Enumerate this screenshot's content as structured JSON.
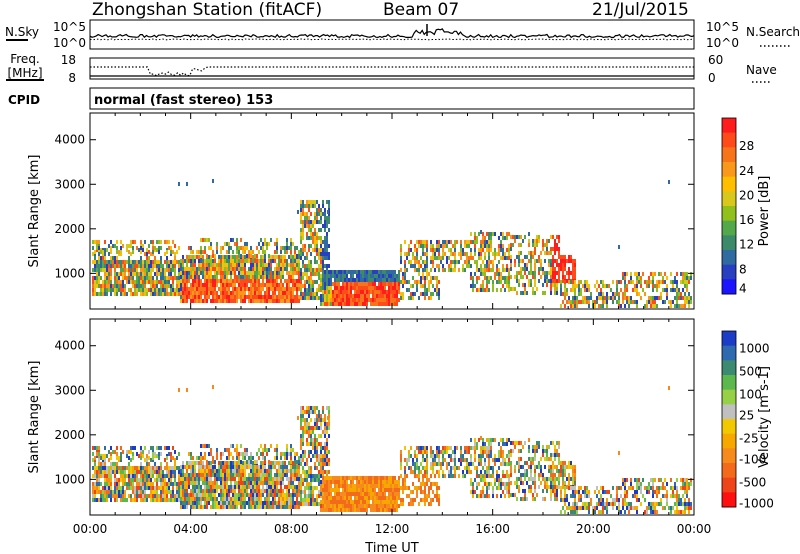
{
  "header": {
    "station": "Zhongshan Station (fitACF)",
    "beam": "Beam 07",
    "date": "21/Jul/2015"
  },
  "chart_data": [
    {
      "type": "line",
      "panel": "noise",
      "left_label": "N.Sky",
      "right_label": "N.Search",
      "left_ticks": [
        "10^5",
        "10^0"
      ],
      "right_ticks": [
        "10^5",
        "10^0"
      ]
    },
    {
      "type": "line",
      "panel": "frequency",
      "left_label_lines": [
        "Freq.",
        "[MHz]"
      ],
      "right_label": "Nave",
      "left_ticks": [
        "18",
        "8"
      ],
      "right_ticks": [
        "60",
        "0"
      ]
    },
    {
      "type": "table",
      "panel": "cpid",
      "label": "CPID",
      "text": "normal (fast stereo) 153"
    },
    {
      "type": "heatmap",
      "panel": "power",
      "ylabel": "Slant Range [km]",
      "yticks": [
        1000,
        2000,
        3000,
        4000
      ],
      "ylim": [
        200,
        4600
      ],
      "colorbar": {
        "label": "Power [dB]",
        "ticks": [
          "28",
          "24",
          "20",
          "16",
          "12",
          "8",
          "4"
        ],
        "colors": [
          "#ff1c1c",
          "#ff4a1a",
          "#f7741a",
          "#fa981c",
          "#ffbf00",
          "#d8c81c",
          "#91c01c",
          "#55a84a",
          "#3d8a6a",
          "#2f6aa0",
          "#2840c0",
          "#1c14ff"
        ]
      }
    },
    {
      "type": "heatmap",
      "panel": "velocity",
      "ylabel": "Slant Range [km]",
      "yticks": [
        1000,
        2000,
        3000,
        4000
      ],
      "ylim": [
        200,
        4600
      ],
      "xlabel": "Time UT",
      "xticks": [
        "00:00",
        "04:00",
        "08:00",
        "12:00",
        "16:00",
        "20:00",
        "00:00"
      ],
      "colorbar": {
        "label": "Velocity [m s-1]",
        "ticks": [
          "1000",
          "500",
          "100",
          "25",
          "-25",
          "-100",
          "-500",
          "-1000"
        ],
        "colors": [
          "#1c3cc8",
          "#2f6ab0",
          "#3d8a72",
          "#5cb84c",
          "#96d046",
          "#c0c0c0",
          "#f2c800",
          "#f7a800",
          "#f78a1c",
          "#f26a1a",
          "#ef441a",
          "#ff1010"
        ]
      }
    }
  ]
}
